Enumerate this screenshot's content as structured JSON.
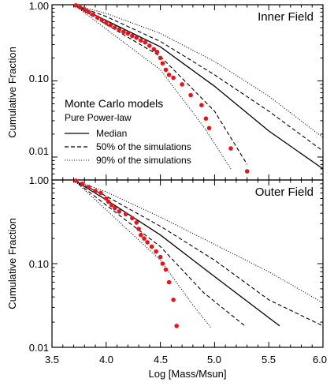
{
  "chart_data": [
    {
      "type": "scatter",
      "panel_title": "Inner Field",
      "xlim": [
        3.5,
        6.0
      ],
      "ylim": [
        0.005,
        1.0
      ],
      "yscale": "log",
      "ylabel": "Cumulative Fraction",
      "xlabel": "",
      "x_ticks": [],
      "y_ticks": [
        "1.00",
        "0.10",
        "0.01"
      ],
      "legend": {
        "title": "Monte Carlo models",
        "subtitle": "Pure Power-law",
        "entries": [
          "Median",
          "50% of the simulations",
          "90% of the simulations"
        ]
      },
      "series": [
        {
          "name": "Median",
          "style": "solid",
          "x": [
            3.7,
            4.0,
            4.5,
            5.0,
            5.5,
            6.0
          ],
          "y": [
            1.0,
            0.62,
            0.28,
            0.085,
            0.022,
            0.007
          ]
        },
        {
          "name": "50% of the simulations",
          "style": "dashed",
          "x": [
            3.7,
            4.0,
            4.5,
            5.0,
            5.5,
            6.0
          ],
          "y": [
            1.0,
            0.7,
            0.33,
            0.12,
            0.04,
            0.012
          ]
        },
        {
          "name": "50% of the simulations",
          "style": "dashed",
          "x": [
            3.7,
            4.0,
            4.5,
            5.0,
            5.3
          ],
          "y": [
            1.0,
            0.55,
            0.21,
            0.04,
            0.008
          ]
        },
        {
          "name": "90% of the simulations",
          "style": "dotted",
          "x": [
            3.7,
            4.0,
            4.5,
            5.0,
            5.5,
            6.0
          ],
          "y": [
            1.0,
            0.77,
            0.42,
            0.18,
            0.063,
            0.018
          ]
        },
        {
          "name": "90% of the simulations",
          "style": "dotted",
          "x": [
            3.7,
            4.0,
            4.5,
            4.9,
            5.15
          ],
          "y": [
            1.0,
            0.48,
            0.14,
            0.025,
            0.007
          ]
        }
      ],
      "points": {
        "x": [
          3.72,
          3.76,
          3.8,
          3.84,
          3.88,
          3.92,
          3.96,
          4.0,
          4.04,
          4.08,
          4.12,
          4.16,
          4.2,
          4.24,
          4.28,
          4.32,
          4.36,
          4.4,
          4.44,
          4.47,
          4.5,
          4.52,
          4.55,
          4.58,
          4.62,
          4.7,
          4.78,
          4.88,
          4.92,
          4.95,
          5.15,
          5.3
        ],
        "y": [
          0.98,
          0.92,
          0.86,
          0.8,
          0.74,
          0.68,
          0.63,
          0.58,
          0.54,
          0.5,
          0.47,
          0.44,
          0.42,
          0.39,
          0.37,
          0.34,
          0.32,
          0.29,
          0.26,
          0.24,
          0.2,
          0.17,
          0.14,
          0.12,
          0.11,
          0.09,
          0.065,
          0.048,
          0.032,
          0.024,
          0.013,
          0.0065
        ]
      }
    },
    {
      "type": "scatter",
      "panel_title": "Outer Field",
      "xlim": [
        3.5,
        6.0
      ],
      "ylim": [
        0.01,
        1.0
      ],
      "yscale": "log",
      "ylabel": "Cumulative Fraction",
      "xlabel": "Log [Mass/Msun]",
      "x_ticks": [
        "3.5",
        "4.0",
        "4.5",
        "5.0",
        "5.5",
        "6.0"
      ],
      "y_ticks": [
        "1.00",
        "0.10",
        "0.01"
      ],
      "series": [
        {
          "name": "Median",
          "style": "solid",
          "x": [
            3.7,
            4.0,
            4.5,
            5.0,
            5.6
          ],
          "y": [
            1.0,
            0.58,
            0.22,
            0.07,
            0.018
          ]
        },
        {
          "name": "50% of the simulations",
          "style": "dashed",
          "x": [
            3.7,
            4.0,
            4.5,
            5.0,
            5.5,
            6.0
          ],
          "y": [
            1.0,
            0.64,
            0.28,
            0.11,
            0.037,
            0.018
          ]
        },
        {
          "name": "50% of the simulations",
          "style": "dashed",
          "x": [
            3.7,
            4.0,
            4.5,
            4.9,
            5.28
          ],
          "y": [
            1.0,
            0.5,
            0.16,
            0.045,
            0.018
          ]
        },
        {
          "name": "90% of the simulations",
          "style": "dotted",
          "x": [
            3.7,
            4.0,
            4.5,
            5.0,
            5.5,
            6.0
          ],
          "y": [
            1.0,
            0.72,
            0.36,
            0.17,
            0.08,
            0.034
          ]
        },
        {
          "name": "90% of the simulations",
          "style": "dotted",
          "x": [
            3.7,
            4.0,
            4.5,
            4.8,
            4.97
          ],
          "y": [
            1.0,
            0.44,
            0.11,
            0.032,
            0.017
          ]
        }
      ],
      "points": {
        "x": [
          3.72,
          3.78,
          3.84,
          3.9,
          3.95,
          4.0,
          4.02,
          4.05,
          4.08,
          4.12,
          4.18,
          4.24,
          4.28,
          4.3,
          4.32,
          4.35,
          4.38,
          4.42,
          4.46,
          4.5,
          4.52,
          4.55,
          4.58,
          4.62,
          4.65
        ],
        "y": [
          0.98,
          0.9,
          0.82,
          0.74,
          0.7,
          0.6,
          0.55,
          0.5,
          0.46,
          0.42,
          0.39,
          0.35,
          0.31,
          0.26,
          0.22,
          0.2,
          0.18,
          0.16,
          0.14,
          0.12,
          0.1,
          0.085,
          0.06,
          0.037,
          0.018
        ]
      }
    }
  ]
}
